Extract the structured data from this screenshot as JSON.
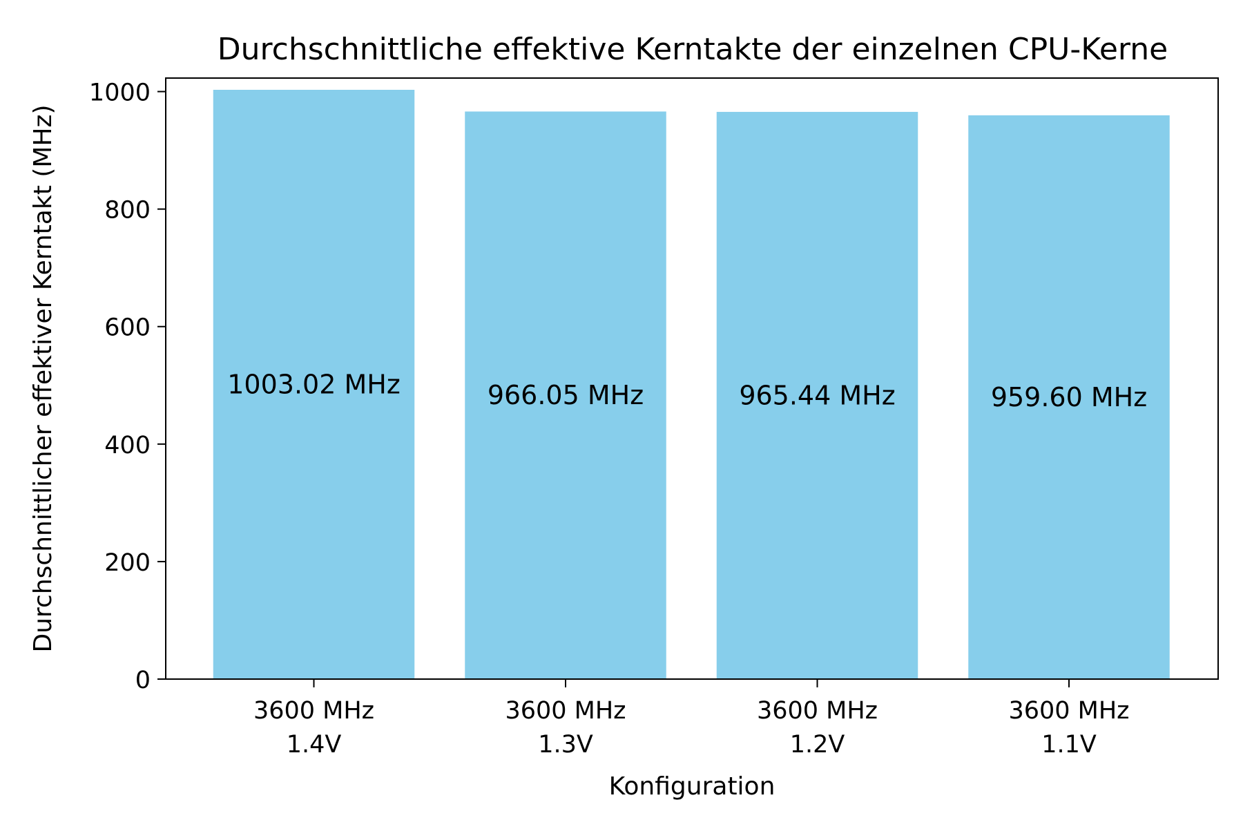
{
  "chart_data": {
    "type": "bar",
    "title": "Durchschnittliche effektive Kerntakte der einzelnen CPU-Kerne",
    "xlabel": "Konfiguration",
    "ylabel": "Durchschnittlicher effektiver Kerntakt (MHz)",
    "categories": [
      [
        "3600 MHz",
        "1.4V"
      ],
      [
        "3600 MHz",
        "1.3V"
      ],
      [
        "3600 MHz",
        "1.2V"
      ],
      [
        "3600 MHz",
        "1.1V"
      ]
    ],
    "values": [
      1003.02,
      966.05,
      965.44,
      959.6
    ],
    "data_labels": [
      "1003.02 MHz",
      "966.05 MHz",
      "965.44 MHz",
      "959.60 MHz"
    ],
    "y_ticks": [
      0,
      200,
      400,
      600,
      800,
      1000
    ],
    "ylim": [
      0,
      1023
    ],
    "grid": false,
    "bar_color": "#87CEEB"
  }
}
